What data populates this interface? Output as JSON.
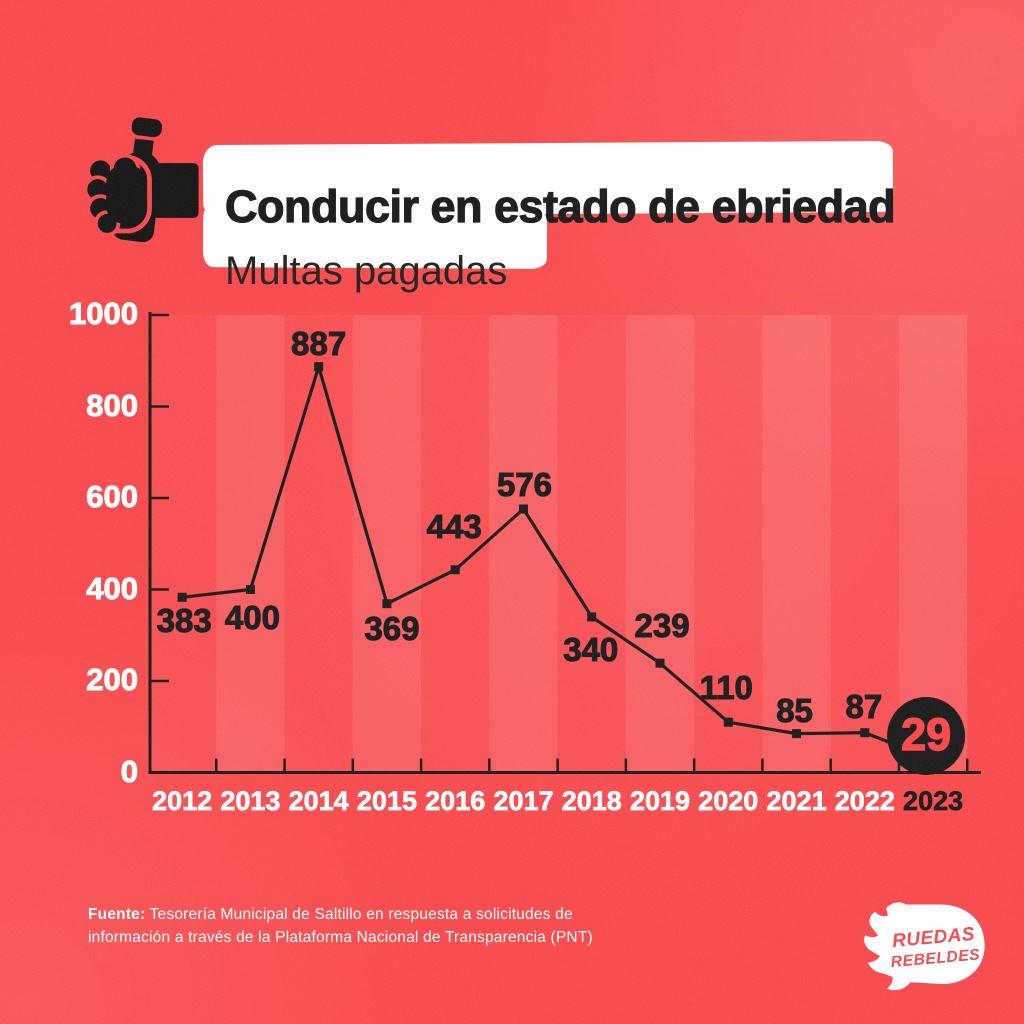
{
  "header": {
    "title": "Conducir en estado de ebriedad",
    "subtitle": "Multas pagadas",
    "icon": "hand-holding-bottle-icon"
  },
  "chart_data": {
    "type": "line",
    "title": "Conducir en estado de ebriedad — Multas pagadas",
    "categories": [
      "2012",
      "2013",
      "2014",
      "2015",
      "2016",
      "2017",
      "2018",
      "2019",
      "2020",
      "2021",
      "2022",
      "2023"
    ],
    "values": [
      383,
      400,
      887,
      369,
      443,
      576,
      340,
      239,
      110,
      85,
      87,
      29
    ],
    "ylim": [
      0,
      1000
    ],
    "yticks": [
      1000,
      800,
      600,
      400,
      200,
      0
    ],
    "grid": "off",
    "legend": "none",
    "marker": "square",
    "line_color": "#1c1c1c",
    "highlight_last_point": {
      "year": "2023",
      "value": 29,
      "style": "black-circle-badge",
      "text_color": "#f8494c"
    }
  },
  "footer": {
    "source_label": "Fuente:",
    "source_line1": "Tesorería Municipal de Saltillo en respuesta a solicitudes de",
    "source_line2": "información a través de la Plataforma Nacional de Transparencia (PNT)"
  },
  "logo": {
    "line1": "RUEDAS",
    "line2": "REBELDES"
  },
  "colors": {
    "background": "#f8494c",
    "stripe": "rgba(255,255,255,0.09)",
    "ink": "#1c1c1c",
    "card": "#ffffff",
    "axis_text": "#ffffff"
  }
}
